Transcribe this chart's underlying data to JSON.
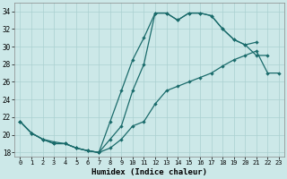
{
  "xlabel": "Humidex (Indice chaleur)",
  "xlim": [
    -0.5,
    23.5
  ],
  "ylim": [
    17.5,
    35.0
  ],
  "yticks": [
    18,
    20,
    22,
    24,
    26,
    28,
    30,
    32,
    34
  ],
  "xticks": [
    0,
    1,
    2,
    3,
    4,
    5,
    6,
    7,
    8,
    9,
    10,
    11,
    12,
    13,
    14,
    15,
    16,
    17,
    18,
    19,
    20,
    21,
    22,
    23
  ],
  "bg_color": "#cce8e8",
  "grid_color": "#aad0d0",
  "line_color": "#1a6b6b",
  "curve1_x": [
    0,
    1,
    2,
    3,
    4,
    5,
    6,
    7,
    8,
    9,
    10,
    11,
    12,
    13,
    14,
    15,
    16,
    17,
    18,
    19,
    20,
    21
  ],
  "curve1_y": [
    21.5,
    20.2,
    19.5,
    19.0,
    19.0,
    18.5,
    18.2,
    18.0,
    19.5,
    21.0,
    25.0,
    28.0,
    33.8,
    33.8,
    33.0,
    33.8,
    33.8,
    33.5,
    32.0,
    30.8,
    30.2,
    30.5
  ],
  "curve2_x": [
    0,
    1,
    2,
    3,
    4,
    5,
    6,
    7,
    8,
    9,
    10,
    11,
    12,
    13,
    14,
    15,
    16,
    17,
    18,
    19,
    20,
    21,
    22,
    23
  ],
  "curve2_y": [
    21.5,
    20.2,
    19.5,
    19.2,
    19.0,
    18.5,
    18.2,
    18.0,
    18.5,
    19.5,
    21.0,
    21.5,
    23.5,
    25.0,
    25.5,
    26.0,
    26.5,
    27.0,
    27.8,
    28.5,
    29.0,
    29.5,
    27.0,
    27.0
  ],
  "curve3_x": [
    0,
    1,
    2,
    3,
    4,
    5,
    6,
    7,
    8,
    9,
    10,
    11,
    12,
    13,
    14,
    15,
    16,
    17,
    18,
    19,
    20,
    21,
    22,
    23
  ],
  "curve3_y": [
    21.5,
    20.2,
    19.5,
    19.0,
    19.0,
    18.5,
    18.2,
    18.0,
    21.5,
    25.0,
    28.5,
    31.0,
    33.8,
    33.8,
    33.0,
    33.8,
    33.8,
    33.5,
    32.0,
    30.8,
    30.2,
    29.0,
    29.0,
    null
  ]
}
